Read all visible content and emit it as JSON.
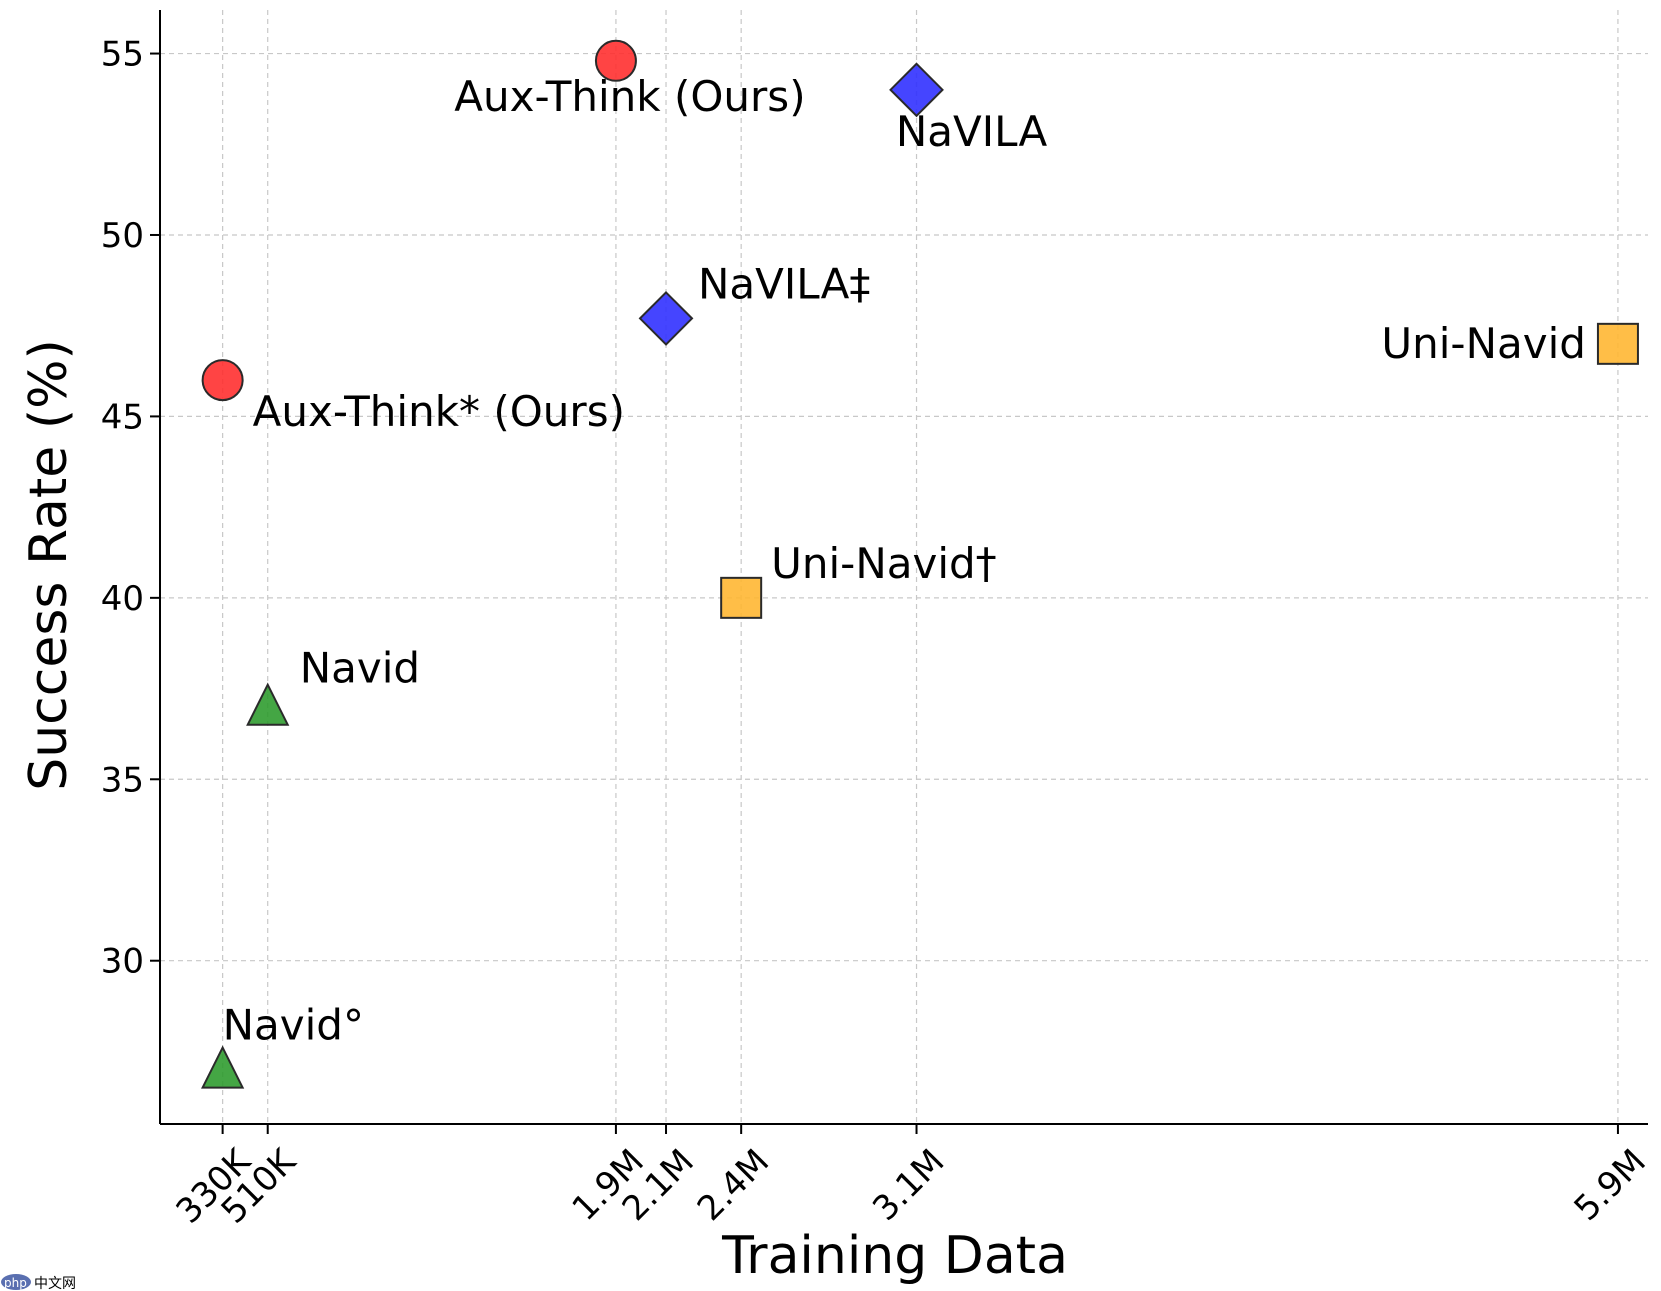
{
  "chart_data": {
    "type": "scatter",
    "title": "",
    "xlabel": "Training Data",
    "ylabel": "Success Rate (%)",
    "xlim": [
      0.08,
      6.02
    ],
    "ylim": [
      25.5,
      56.2
    ],
    "grid": true,
    "x_ticks": [
      {
        "value": 0.33,
        "label": "330K"
      },
      {
        "value": 0.51,
        "label": "510K"
      },
      {
        "value": 1.9,
        "label": "1.9M"
      },
      {
        "value": 2.1,
        "label": "2.1M"
      },
      {
        "value": 2.4,
        "label": "2.4M"
      },
      {
        "value": 3.1,
        "label": "3.1M"
      },
      {
        "value": 5.9,
        "label": "5.9M"
      }
    ],
    "y_ticks": [
      {
        "value": 30,
        "label": "30"
      },
      {
        "value": 35,
        "label": "35"
      },
      {
        "value": 40,
        "label": "40"
      },
      {
        "value": 45,
        "label": "45"
      },
      {
        "value": 50,
        "label": "50"
      },
      {
        "value": 55,
        "label": "55"
      }
    ],
    "points": [
      {
        "label": "Aux-Think (Ours)",
        "x": 1.9,
        "y": 54.8,
        "marker": "circle",
        "color": "#ff2a2a"
      },
      {
        "label": "Aux-Think* (Ours)",
        "x": 0.33,
        "y": 46.0,
        "marker": "circle",
        "color": "#ff2a2a"
      },
      {
        "label": "NaVILA",
        "x": 3.1,
        "y": 54.0,
        "marker": "diamond",
        "color": "#2b2bff"
      },
      {
        "label": "NaVILA‡",
        "x": 2.1,
        "y": 47.7,
        "marker": "diamond",
        "color": "#2b2bff"
      },
      {
        "label": "Uni-Navid",
        "x": 5.9,
        "y": 47.0,
        "marker": "square",
        "color": "#ffb52e"
      },
      {
        "label": "Uni-Navid†",
        "x": 2.4,
        "y": 40.0,
        "marker": "square",
        "color": "#ffb52e"
      },
      {
        "label": "Navid",
        "x": 0.51,
        "y": 37.0,
        "marker": "triangle",
        "color": "#2a9a2a"
      },
      {
        "label": "Navid°",
        "x": 0.33,
        "y": 27.0,
        "marker": "triangle",
        "color": "#2a9a2a"
      }
    ]
  },
  "watermark": "中文网",
  "watermark_logo": "php"
}
